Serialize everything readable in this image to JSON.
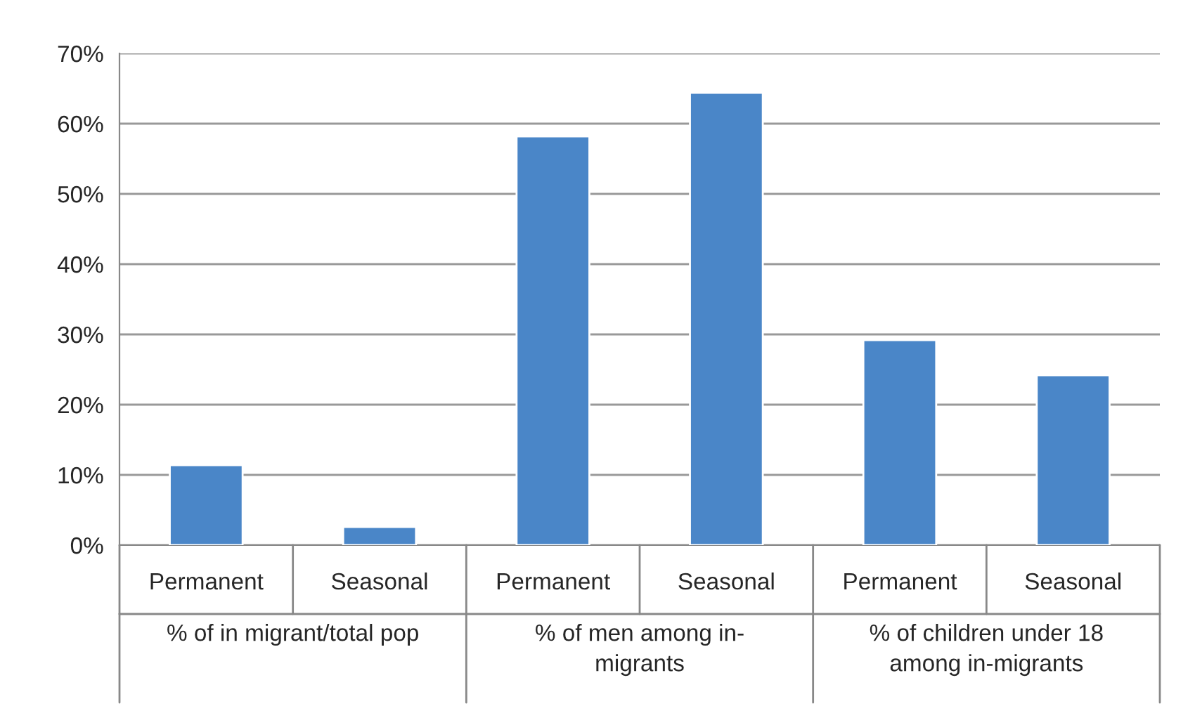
{
  "chart_data": {
    "type": "bar",
    "categories": [
      "Permanent",
      "Seasonal",
      "Permanent",
      "Seasonal",
      "Permanent",
      "Seasonal"
    ],
    "values": [
      11.4,
      2.6,
      58.2,
      64.4,
      29.2,
      24.2
    ],
    "color": "#4a86c8",
    "ylim": [
      0,
      70
    ],
    "yticks": [
      {
        "value": 0,
        "label": "0%"
      },
      {
        "value": 10,
        "label": "10%"
      },
      {
        "value": 20,
        "label": "20%"
      },
      {
        "value": 30,
        "label": "30%"
      },
      {
        "value": 40,
        "label": "40%"
      },
      {
        "value": 50,
        "label": "50%"
      },
      {
        "value": 60,
        "label": "60%"
      },
      {
        "value": 70,
        "label": "70%"
      }
    ],
    "grid": "y",
    "annotations": [
      "% of in migrant/total pop",
      "% of men among in-\nmigrants",
      "% of children under 18\namong in-migrants"
    ]
  }
}
